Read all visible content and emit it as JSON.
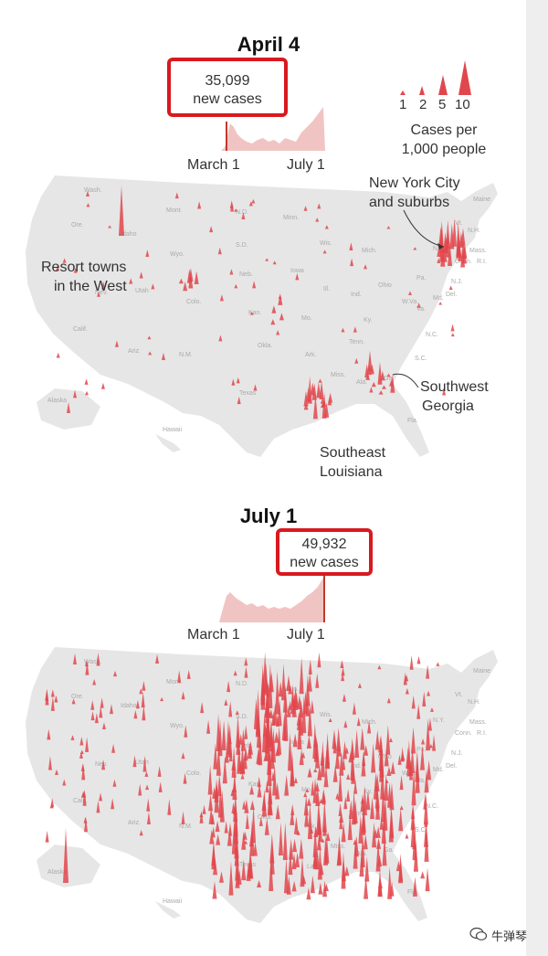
{
  "panels": [
    {
      "title": "April 4",
      "callout_value": "35,099",
      "callout_label": "new cases",
      "axis_start": "March 1",
      "axis_end": "July 1"
    },
    {
      "title": "July 1",
      "callout_value": "49,932",
      "callout_label": "new cases",
      "axis_start": "March 1",
      "axis_end": "July 1"
    }
  ],
  "legend": {
    "values": [
      "1",
      "2",
      "5",
      "10"
    ],
    "title_line1": "Cases per",
    "title_line2": "1,000 people"
  },
  "annotations": {
    "nyc_line1": "New York City",
    "nyc_line2": "and suburbs",
    "resort_line1": "Resort towns",
    "resort_line2": "in the West",
    "sw_georgia_line1": "Southwest",
    "sw_georgia_line2": "Georgia",
    "se_louisiana_line1": "Southeast",
    "se_louisiana_line2": "Louisiana"
  },
  "state_labels": [
    "Wash.",
    "Ore.",
    "Idaho",
    "Mont.",
    "Wyo.",
    "N.D.",
    "S.D.",
    "Neb.",
    "Kan.",
    "Okla.",
    "Texas",
    "Colo.",
    "Utah",
    "Nev.",
    "Calif.",
    "Ariz.",
    "N.M.",
    "Minn.",
    "Wis.",
    "Mich.",
    "Iowa",
    "Ill.",
    "Ind.",
    "Ohio",
    "Mo.",
    "Ark.",
    "La.",
    "Miss.",
    "Ala.",
    "Ga.",
    "Fla.",
    "Tenn.",
    "Ky.",
    "Va.",
    "N.C.",
    "S.C.",
    "Pa.",
    "N.Y.",
    "Vt.",
    "N.H.",
    "Maine",
    "Mass.",
    "Conn.",
    "R.I.",
    "N.J.",
    "Del.",
    "Md.",
    "W.Va.",
    "Alaska",
    "Hawaii"
  ],
  "watermark": "牛弹琴",
  "colors": {
    "accent": "#d8191f",
    "spike": "#e0474c",
    "map": "#e6e6e6",
    "sparkline": "#f1c4c4"
  }
}
